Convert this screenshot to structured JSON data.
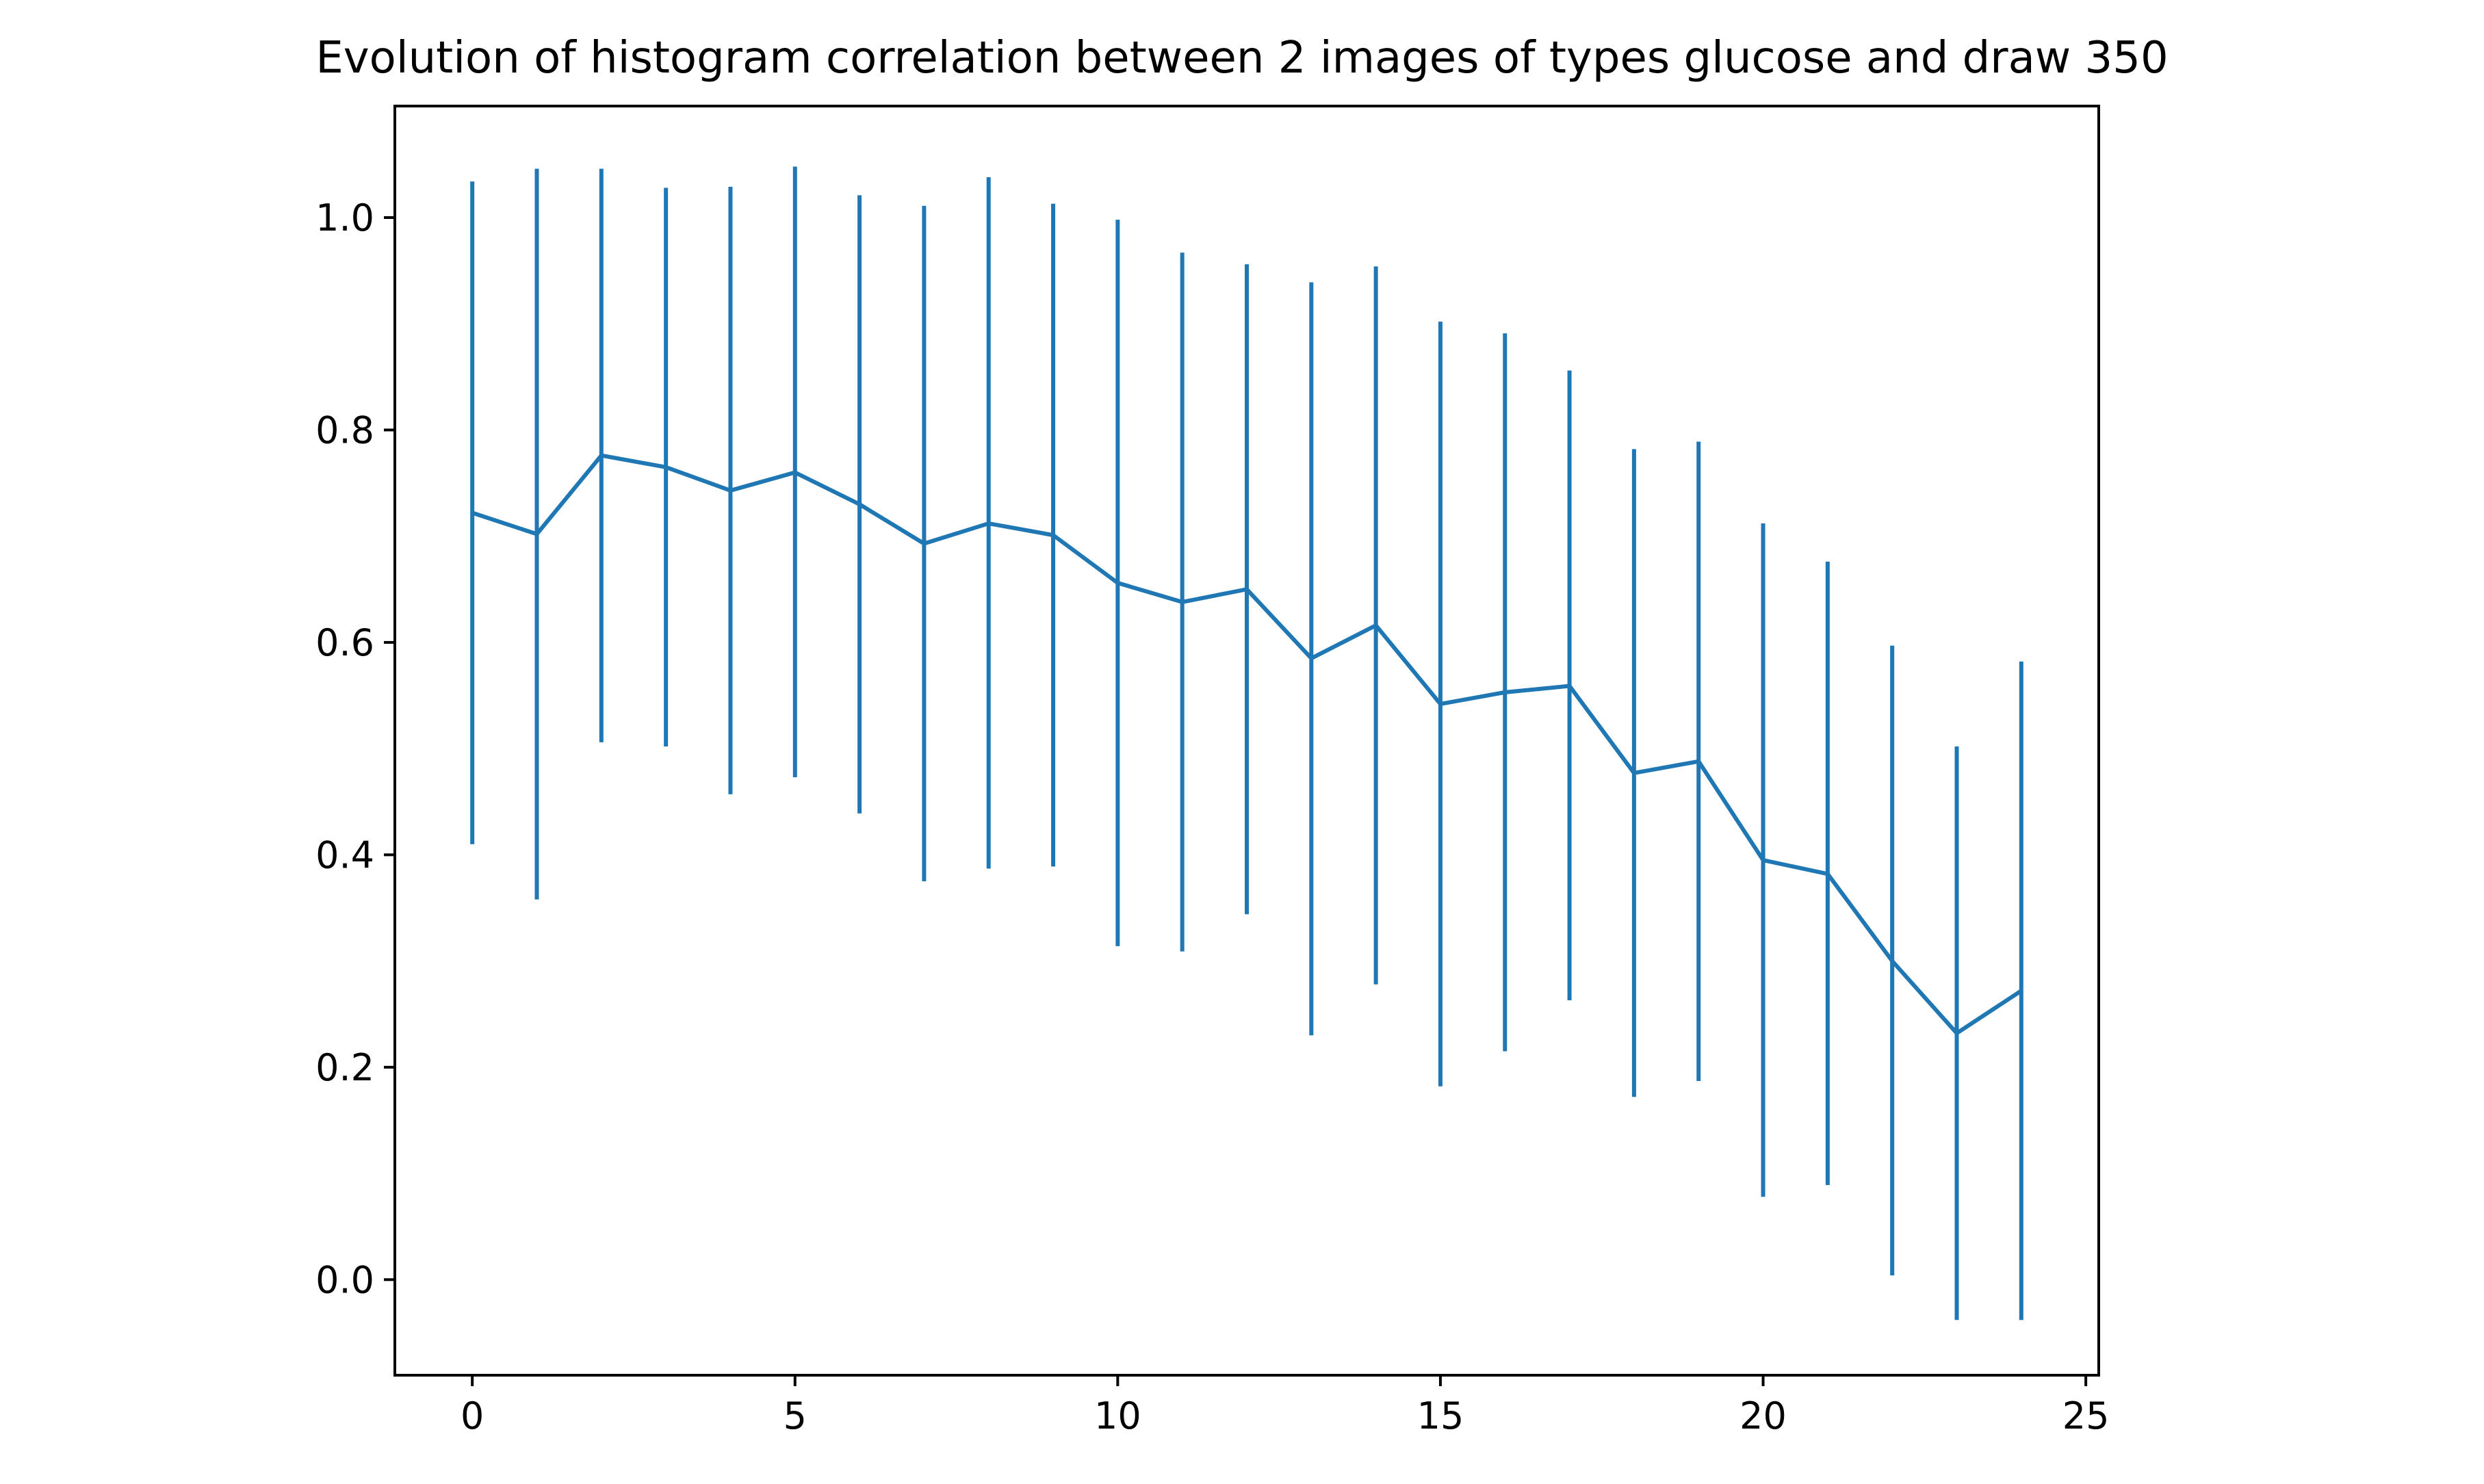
{
  "chart_data": {
    "type": "line",
    "title": "Evolution of histogram correlation between 2 images of types glucose and draw 350",
    "xlabel": "",
    "ylabel": "",
    "xlim": [
      -1.2,
      25.2
    ],
    "ylim": [
      -0.09,
      1.105
    ],
    "grid": false,
    "x_ticks": [
      0,
      5,
      10,
      15,
      20,
      25
    ],
    "x_tick_labels": [
      "0",
      "5",
      "10",
      "15",
      "20",
      "25"
    ],
    "y_ticks": [
      0.0,
      0.2,
      0.4,
      0.6,
      0.8,
      1.0
    ],
    "y_tick_labels": [
      "0.0",
      "0.2",
      "0.4",
      "0.6",
      "0.8",
      "1.0"
    ],
    "color": "#1f77b4",
    "series": [
      {
        "x": [
          0,
          1,
          2,
          3,
          4,
          5,
          6,
          7,
          8,
          9,
          10,
          11,
          12,
          13,
          14,
          15,
          16,
          17,
          18,
          19,
          20,
          21,
          22,
          23,
          24
        ],
        "y": [
          0.722,
          0.702,
          0.776,
          0.765,
          0.743,
          0.76,
          0.73,
          0.693,
          0.712,
          0.701,
          0.656,
          0.638,
          0.65,
          0.585,
          0.616,
          0.542,
          0.553,
          0.559,
          0.477,
          0.488,
          0.395,
          0.382,
          0.3,
          0.232,
          0.272
        ],
        "yerr_low": [
          0.41,
          0.358,
          0.506,
          0.502,
          0.457,
          0.473,
          0.439,
          0.375,
          0.387,
          0.389,
          0.314,
          0.309,
          0.344,
          0.23,
          0.278,
          0.182,
          0.215,
          0.263,
          0.172,
          0.187,
          0.078,
          0.089,
          0.004,
          -0.038,
          -0.038
        ],
        "yerr_high": [
          1.034,
          1.046,
          1.046,
          1.028,
          1.029,
          1.048,
          1.021,
          1.011,
          1.038,
          1.013,
          0.998,
          0.967,
          0.956,
          0.939,
          0.954,
          0.902,
          0.891,
          0.856,
          0.782,
          0.789,
          0.712,
          0.676,
          0.597,
          0.502,
          0.582
        ]
      }
    ]
  }
}
